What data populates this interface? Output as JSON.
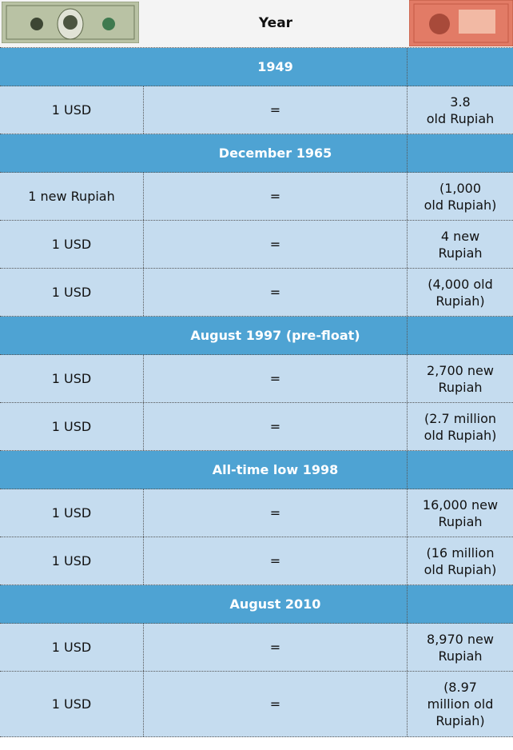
{
  "header": {
    "title": "Year"
  },
  "sections": [
    {
      "title": "1949",
      "rows": [
        {
          "left": "1 USD",
          "middle": "=",
          "right": [
            "3.8",
            "old Rupiah"
          ]
        }
      ]
    },
    {
      "title": "December 1965",
      "rows": [
        {
          "left": "1 new Rupiah",
          "middle": "=",
          "right": [
            "(1,000",
            "old Rupiah)"
          ]
        },
        {
          "left": "1 USD",
          "middle": "=",
          "right": [
            "4 new",
            "Rupiah"
          ]
        },
        {
          "left": "1 USD",
          "middle": "=",
          "right": [
            "(4,000 old",
            "Rupiah)"
          ]
        }
      ]
    },
    {
      "title": "August 1997 (pre-float)",
      "rows": [
        {
          "left": "1 USD",
          "middle": "=",
          "right": [
            "2,700 new",
            "Rupiah"
          ]
        },
        {
          "left": "1 USD",
          "middle": "=",
          "right": [
            "(2.7 million",
            "old Rupiah)"
          ]
        }
      ]
    },
    {
      "title": "All-time low 1998",
      "rows": [
        {
          "left": "1 USD",
          "middle": "=",
          "right": [
            "16,000 new",
            "Rupiah"
          ]
        },
        {
          "left": "1 USD",
          "middle": "=",
          "right": [
            "(16 million",
            "old Rupiah)"
          ]
        }
      ]
    },
    {
      "title": "August 2010",
      "rows": [
        {
          "left": "1 USD",
          "middle": "=",
          "right": [
            "8,970 new",
            "Rupiah"
          ]
        },
        {
          "left": "1 USD",
          "middle": "=",
          "right": [
            "(8.97",
            "million old",
            "Rupiah)"
          ]
        }
      ]
    }
  ]
}
